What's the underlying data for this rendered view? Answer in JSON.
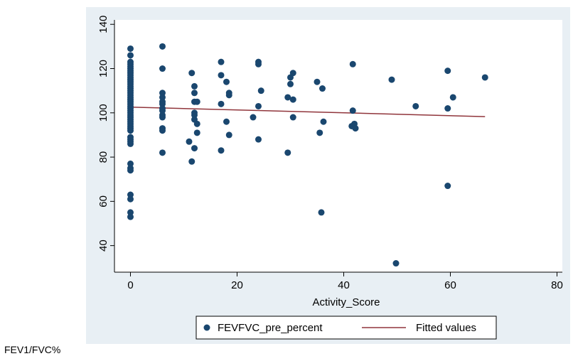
{
  "colors": {
    "panel_background": "#e8eff4",
    "plot_background": "#ffffff",
    "scatter": "#1a476f",
    "fit_line": "#90353b"
  },
  "caption": "FEV1/FVC%",
  "chart_data": {
    "type": "scatter",
    "title": "",
    "xlabel": "Activity_Score",
    "ylabel": "",
    "xlim": [
      -3,
      81
    ],
    "ylim": [
      28,
      142
    ],
    "x_ticks": [
      0,
      20,
      40,
      60,
      80
    ],
    "y_ticks": [
      40,
      60,
      80,
      100,
      120,
      140
    ],
    "grid": false,
    "legend_position": "bottom",
    "series": [
      {
        "name": "FEVFVC_pre_percent",
        "kind": "scatter",
        "points": [
          [
            0,
            129
          ],
          [
            0,
            126
          ],
          [
            0,
            123
          ],
          [
            0,
            122
          ],
          [
            0,
            121
          ],
          [
            0,
            120
          ],
          [
            0,
            119
          ],
          [
            0,
            118
          ],
          [
            0,
            117
          ],
          [
            0,
            116
          ],
          [
            0,
            115
          ],
          [
            0,
            114
          ],
          [
            0,
            113
          ],
          [
            0,
            112
          ],
          [
            0,
            111
          ],
          [
            0,
            110
          ],
          [
            0,
            109
          ],
          [
            0,
            108
          ],
          [
            0,
            107
          ],
          [
            0,
            106
          ],
          [
            0,
            105
          ],
          [
            0,
            104
          ],
          [
            0,
            103
          ],
          [
            0,
            102
          ],
          [
            0,
            101
          ],
          [
            0,
            100
          ],
          [
            0,
            99
          ],
          [
            0,
            98
          ],
          [
            0,
            97
          ],
          [
            0,
            96
          ],
          [
            0,
            95
          ],
          [
            0,
            94
          ],
          [
            0,
            93
          ],
          [
            0,
            92
          ],
          [
            0,
            89
          ],
          [
            0,
            88
          ],
          [
            0,
            87
          ],
          [
            0,
            86
          ],
          [
            0,
            77
          ],
          [
            0,
            75
          ],
          [
            0,
            74
          ],
          [
            0,
            63
          ],
          [
            0,
            61
          ],
          [
            0,
            55
          ],
          [
            0,
            53
          ],
          [
            6,
            130
          ],
          [
            6,
            120
          ],
          [
            6,
            109
          ],
          [
            6,
            107
          ],
          [
            6,
            105
          ],
          [
            6,
            104
          ],
          [
            6,
            102
          ],
          [
            6,
            101
          ],
          [
            6,
            99
          ],
          [
            6,
            98
          ],
          [
            6,
            93
          ],
          [
            6,
            92
          ],
          [
            6,
            82
          ],
          [
            11,
            87
          ],
          [
            11.5,
            118
          ],
          [
            11.5,
            78
          ],
          [
            12,
            112
          ],
          [
            12,
            109
          ],
          [
            12,
            105
          ],
          [
            12,
            100
          ],
          [
            12,
            99
          ],
          [
            12,
            97
          ],
          [
            12.5,
            105
          ],
          [
            12.5,
            95
          ],
          [
            12.5,
            91
          ],
          [
            12,
            84
          ],
          [
            17,
            123
          ],
          [
            17,
            117
          ],
          [
            17,
            104
          ],
          [
            17,
            83
          ],
          [
            18,
            114
          ],
          [
            18,
            96
          ],
          [
            18.5,
            109
          ],
          [
            18.5,
            108
          ],
          [
            18.5,
            90
          ],
          [
            23,
            98
          ],
          [
            24,
            123
          ],
          [
            24,
            122
          ],
          [
            24,
            103
          ],
          [
            24,
            88
          ],
          [
            24.5,
            110
          ],
          [
            29.5,
            107
          ],
          [
            29.5,
            82
          ],
          [
            30,
            116
          ],
          [
            30,
            113
          ],
          [
            30.5,
            118
          ],
          [
            30.5,
            106
          ],
          [
            30.5,
            98
          ],
          [
            35,
            114
          ],
          [
            35.5,
            91
          ],
          [
            35.8,
            55
          ],
          [
            36,
            111
          ],
          [
            36.2,
            96
          ],
          [
            41.5,
            94
          ],
          [
            41.7,
            122
          ],
          [
            41.7,
            101
          ],
          [
            42,
            95
          ],
          [
            42.2,
            93
          ],
          [
            49,
            115
          ],
          [
            49.8,
            32
          ],
          [
            53.5,
            103
          ],
          [
            59.5,
            119
          ],
          [
            59.5,
            102
          ],
          [
            59.5,
            67
          ],
          [
            60.5,
            107
          ],
          [
            66.5,
            116
          ]
        ]
      },
      {
        "name": "Fitted values",
        "kind": "line",
        "points": [
          [
            0,
            102.6
          ],
          [
            66.5,
            98.3
          ]
        ]
      }
    ]
  }
}
